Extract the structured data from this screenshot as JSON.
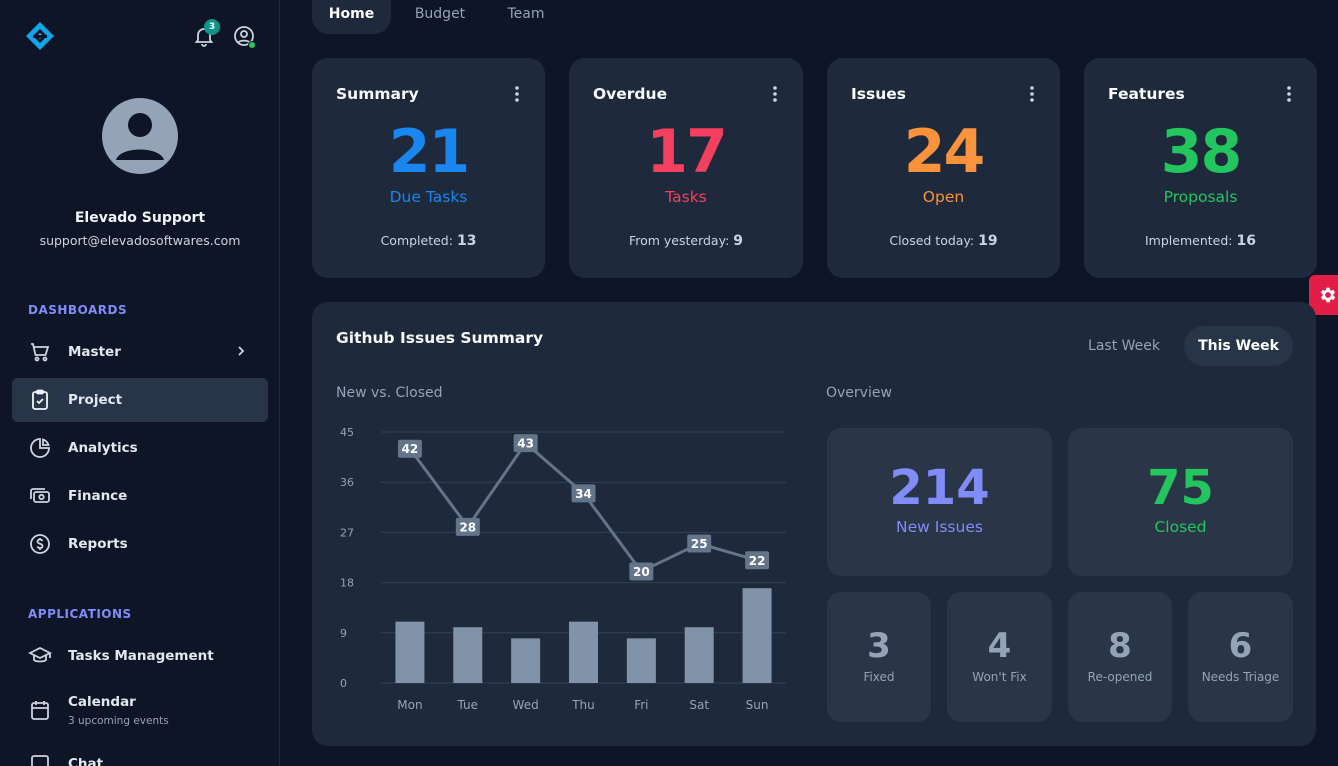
{
  "sidebar": {
    "notification_count": "3",
    "user_name": "Elevado Support",
    "user_email": "support@elevadosoftwares.com",
    "sections": [
      {
        "title": "DASHBOARDS"
      },
      {
        "title": "APPLICATIONS"
      }
    ],
    "nav": [
      {
        "label": "Master",
        "icon": "cart-icon"
      },
      {
        "label": "Project",
        "icon": "clipboard-check-icon"
      },
      {
        "label": "Analytics",
        "icon": "pie-chart-icon"
      },
      {
        "label": "Finance",
        "icon": "cash-icon"
      },
      {
        "label": "Reports",
        "icon": "dollar-circle-icon"
      },
      {
        "label": "Tasks Management",
        "icon": "graduation-cap-icon"
      },
      {
        "label": "Calendar",
        "sub": "3 upcoming events",
        "icon": "calendar-icon"
      },
      {
        "label": "Chat",
        "icon": "chat-icon"
      }
    ]
  },
  "tabs": [
    {
      "label": "Home"
    },
    {
      "label": "Budget"
    },
    {
      "label": "Team"
    }
  ],
  "cards": [
    {
      "title": "Summary",
      "value": "21",
      "label": "Due Tasks",
      "foot_label": "Completed:",
      "foot_value": "13",
      "color": "#1a86f0"
    },
    {
      "title": "Overdue",
      "value": "17",
      "label": "Tasks",
      "foot_label": "From yesterday:",
      "foot_value": "9",
      "color": "#f43f5e"
    },
    {
      "title": "Issues",
      "value": "24",
      "label": "Open",
      "foot_label": "Closed today:",
      "foot_value": "19",
      "color": "#fb923c"
    },
    {
      "title": "Features",
      "value": "38",
      "label": "Proposals",
      "foot_label": "Implemented:",
      "foot_value": "16",
      "color": "#22c55e"
    }
  ],
  "github": {
    "title": "Github Issues Summary",
    "week_buttons": [
      "Last Week",
      "This Week"
    ],
    "chart_title": "New vs. Closed",
    "overview_title": "Overview",
    "overview_main": [
      {
        "value": "214",
        "label": "New Issues",
        "color": "#818cf8"
      },
      {
        "value": "75",
        "label": "Closed",
        "color": "#22c55e"
      }
    ],
    "overview_small": [
      {
        "value": "3",
        "label": "Fixed"
      },
      {
        "value": "4",
        "label": "Won't Fix"
      },
      {
        "value": "8",
        "label": "Re-opened"
      },
      {
        "value": "6",
        "label": "Needs Triage"
      }
    ]
  },
  "chart_data": {
    "type": "bar",
    "title": "New vs. Closed",
    "categories": [
      "Mon",
      "Tue",
      "Wed",
      "Thu",
      "Fri",
      "Sat",
      "Sun"
    ],
    "yticks": [
      "0",
      "9",
      "18",
      "27",
      "36",
      "45"
    ],
    "ylim": [
      0,
      45
    ],
    "series": [
      {
        "type": "line",
        "values": [
          42,
          28,
          43,
          34,
          20,
          25,
          22
        ]
      },
      {
        "type": "bar",
        "values": [
          11,
          10,
          8,
          11,
          8,
          10,
          17
        ]
      }
    ],
    "grid": true
  }
}
